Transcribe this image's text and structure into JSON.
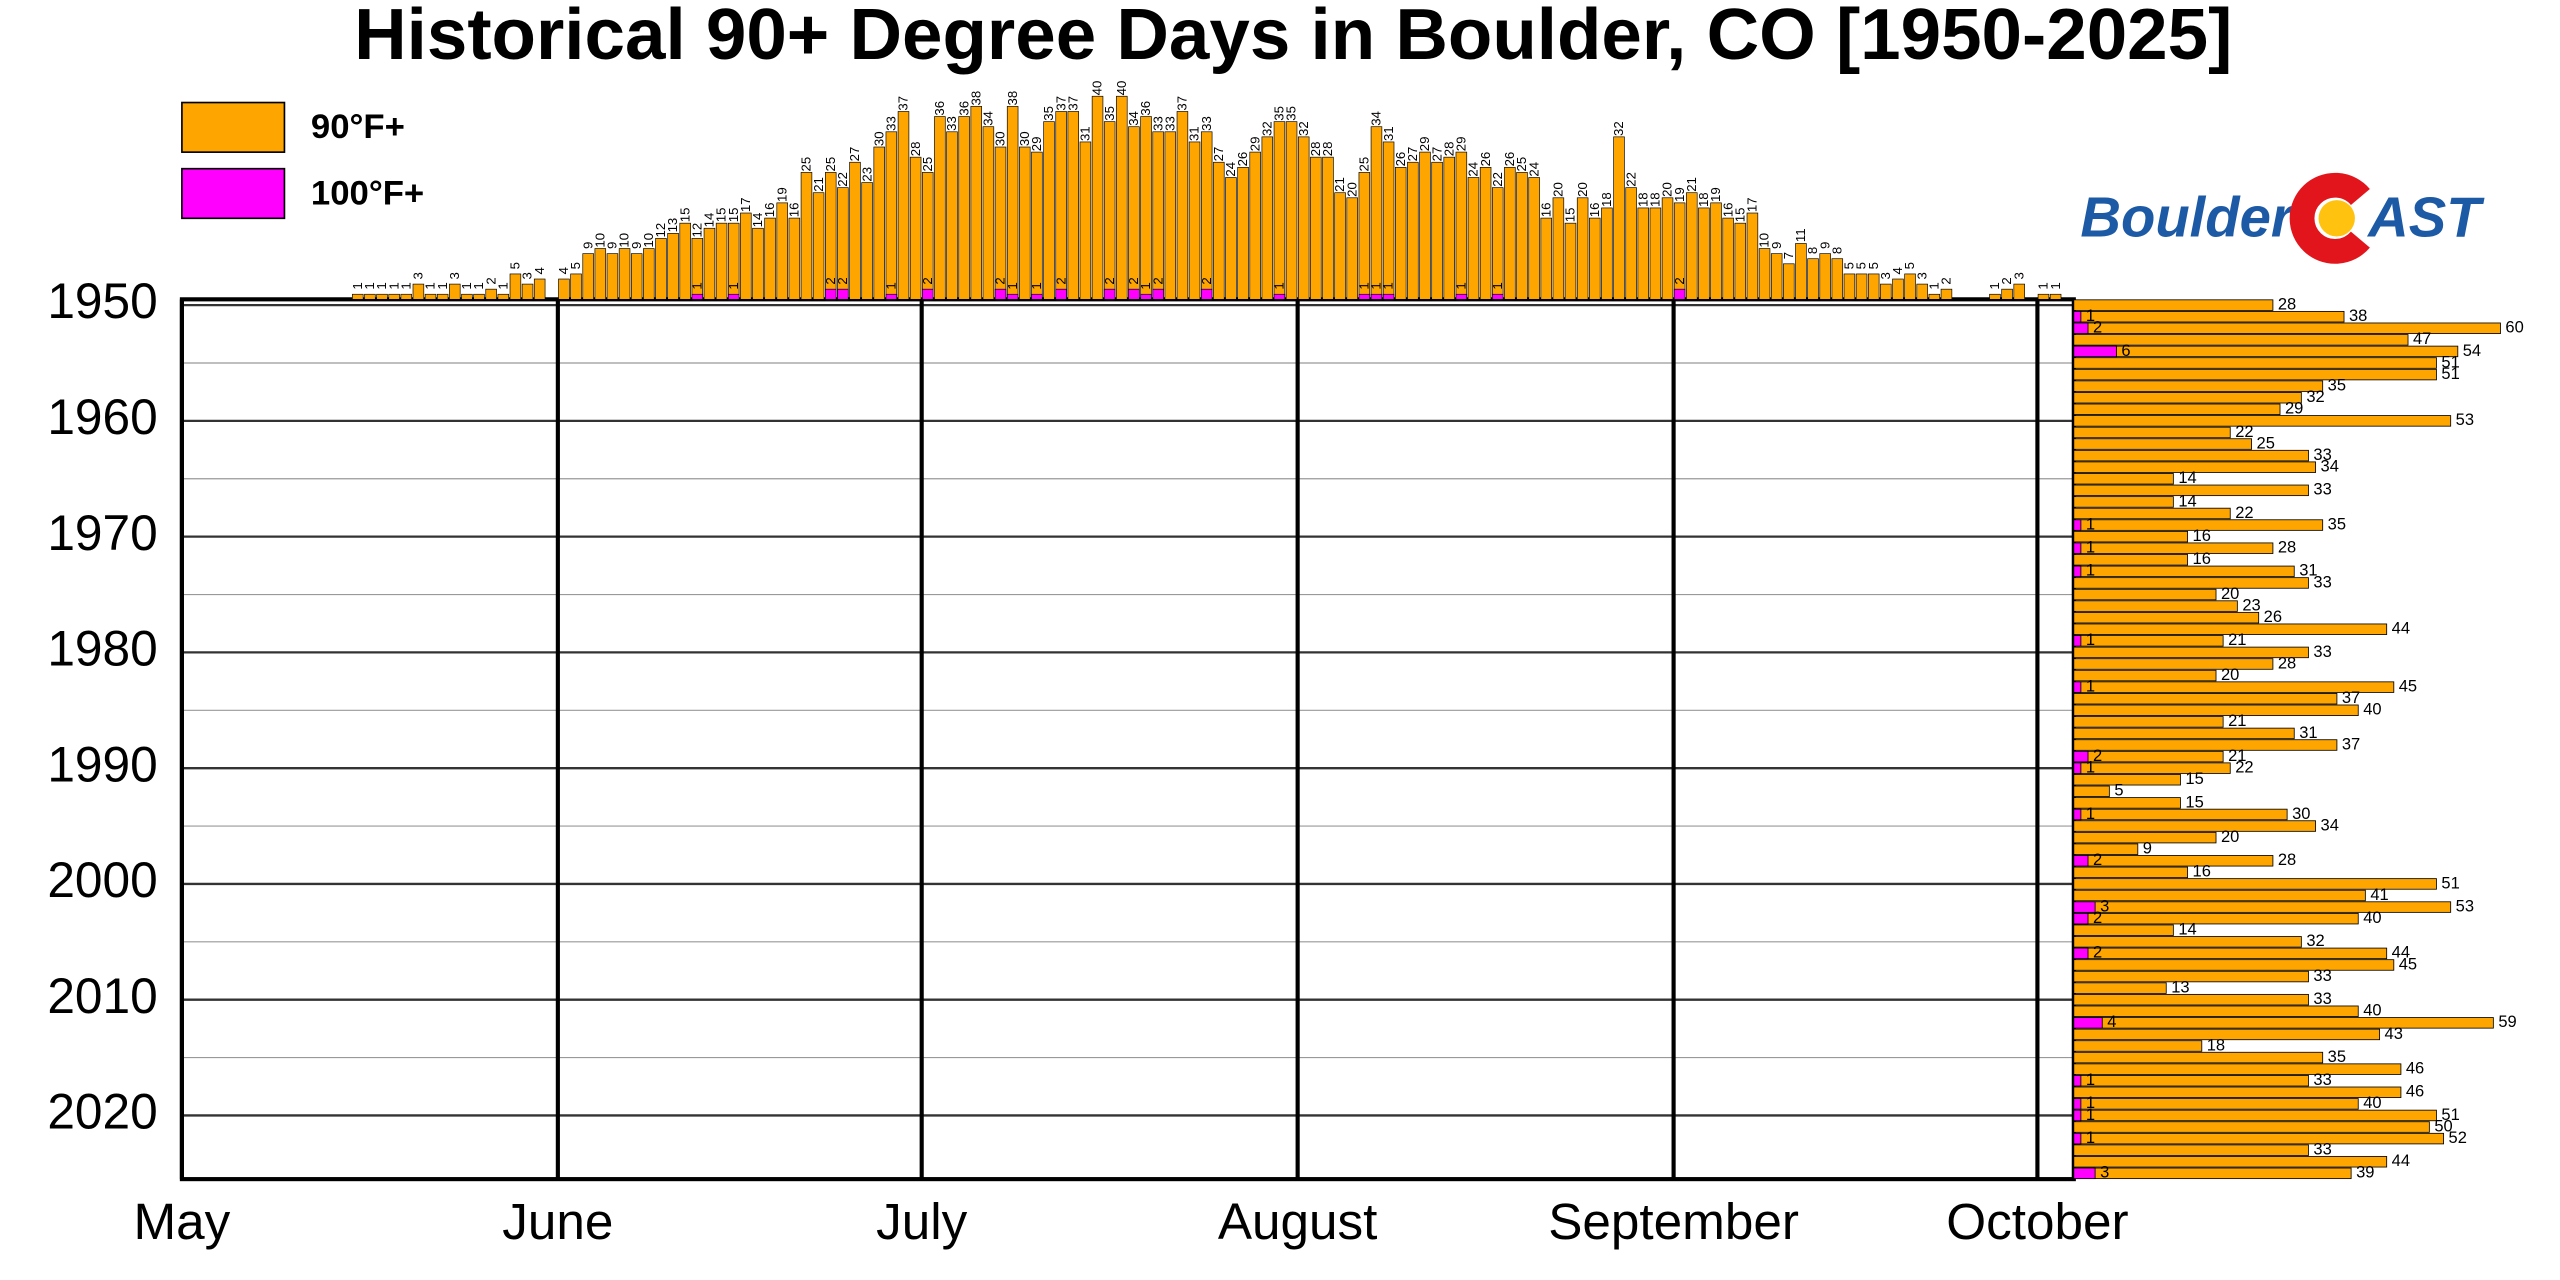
{
  "chart_data": {
    "type": "calendar",
    "title": "Historical 90+ Degree Days in Boulder, CO [1950-2025]",
    "logo": {
      "left": "Boulder",
      "right": "AST"
    },
    "xlim": [
      0,
      156
    ],
    "xticks": [
      {
        "value": 0,
        "label": "May"
      },
      {
        "value": 31,
        "label": "June"
      },
      {
        "value": 61,
        "label": "July"
      },
      {
        "value": 92,
        "label": "August"
      },
      {
        "value": 123,
        "label": "September"
      },
      {
        "value": 153,
        "label": "October"
      }
    ],
    "ylim": [
      1950,
      2025
    ],
    "yticks": [
      1950,
      1960,
      1970,
      1980,
      1990,
      2000,
      2010,
      2020
    ],
    "years": [
      1950,
      1951,
      1952,
      1953,
      1954,
      1955,
      1956,
      1957,
      1958,
      1959,
      1960,
      1961,
      1962,
      1963,
      1964,
      1965,
      1966,
      1967,
      1968,
      1969,
      1970,
      1971,
      1972,
      1973,
      1974,
      1975,
      1976,
      1977,
      1978,
      1979,
      1980,
      1981,
      1982,
      1983,
      1984,
      1985,
      1986,
      1987,
      1988,
      1989,
      1990,
      1991,
      1992,
      1993,
      1994,
      1995,
      1996,
      1997,
      1998,
      1999,
      2000,
      2001,
      2002,
      2003,
      2004,
      2005,
      2006,
      2007,
      2008,
      2009,
      2010,
      2011,
      2012,
      2013,
      2014,
      2015,
      2016,
      2017,
      2018,
      2019,
      2020,
      2021,
      2022,
      2023,
      2024,
      2025
    ],
    "series": [
      {
        "name": "90°F+",
        "color": "#ffa500",
        "daily": [
          null,
          null,
          null,
          null,
          null,
          null,
          null,
          null,
          null,
          null,
          null,
          null,
          null,
          null,
          1,
          1,
          1,
          1,
          1,
          3,
          1,
          1,
          3,
          1,
          1,
          2,
          1,
          5,
          3,
          4,
          null,
          4,
          5,
          9,
          10,
          9,
          10,
          9,
          10,
          12,
          13,
          15,
          12,
          14,
          15,
          15,
          17,
          14,
          16,
          19,
          16,
          25,
          21,
          25,
          22,
          27,
          23,
          30,
          33,
          37,
          28,
          25,
          36,
          33,
          36,
          38,
          34,
          30,
          38,
          30,
          29,
          35,
          37,
          37,
          31,
          40,
          35,
          40,
          34,
          36,
          33,
          33,
          37,
          31,
          33,
          27,
          24,
          26,
          29,
          32,
          35,
          35,
          32,
          28,
          28,
          21,
          20,
          25,
          34,
          31,
          26,
          27,
          29,
          27,
          28,
          29,
          24,
          26,
          22,
          26,
          25,
          24,
          16,
          20,
          15,
          20,
          16,
          18,
          32,
          22,
          18,
          18,
          20,
          19,
          21,
          18,
          19,
          16,
          15,
          17,
          10,
          9,
          7,
          11,
          8,
          9,
          8,
          5,
          5,
          5,
          3,
          4,
          5,
          3,
          1,
          2,
          null,
          null,
          null,
          1,
          2,
          3,
          null,
          1,
          1,
          null
        ],
        "yearly": [
          28,
          38,
          60,
          47,
          54,
          51,
          51,
          35,
          32,
          29,
          53,
          22,
          25,
          33,
          34,
          14,
          33,
          14,
          22,
          35,
          16,
          28,
          16,
          31,
          33,
          20,
          23,
          26,
          44,
          21,
          33,
          28,
          20,
          45,
          37,
          40,
          21,
          31,
          37,
          21,
          22,
          15,
          5,
          15,
          30,
          34,
          20,
          9,
          28,
          16,
          51,
          41,
          53,
          40,
          14,
          32,
          44,
          45,
          33,
          13,
          33,
          40,
          59,
          43,
          18,
          35,
          46,
          33,
          46,
          40,
          51,
          50,
          52,
          33,
          44,
          39
        ]
      },
      {
        "name": "100°F+",
        "color": "#ff00ff",
        "daily_x": [
          42,
          45,
          53,
          54,
          58,
          61,
          67,
          68,
          70,
          72,
          76,
          78,
          79,
          80,
          84,
          90,
          97,
          98,
          99,
          105,
          108,
          123
        ],
        "daily": [
          1,
          1,
          2,
          2,
          1,
          2,
          2,
          1,
          1,
          2,
          2,
          2,
          1,
          2,
          2,
          1,
          1,
          1,
          1,
          1,
          1,
          2
        ],
        "yearly": [
          null,
          1,
          2,
          null,
          6,
          null,
          null,
          null,
          null,
          null,
          null,
          null,
          null,
          null,
          null,
          null,
          null,
          null,
          null,
          1,
          null,
          1,
          null,
          1,
          null,
          null,
          null,
          null,
          null,
          1,
          null,
          null,
          null,
          1,
          null,
          null,
          null,
          null,
          null,
          2,
          1,
          null,
          null,
          null,
          1,
          null,
          null,
          null,
          2,
          null,
          null,
          null,
          3,
          2,
          null,
          null,
          2,
          null,
          null,
          null,
          null,
          null,
          4,
          null,
          null,
          null,
          null,
          1,
          null,
          1,
          1,
          null,
          1,
          null,
          null,
          3
        ]
      }
    ]
  }
}
